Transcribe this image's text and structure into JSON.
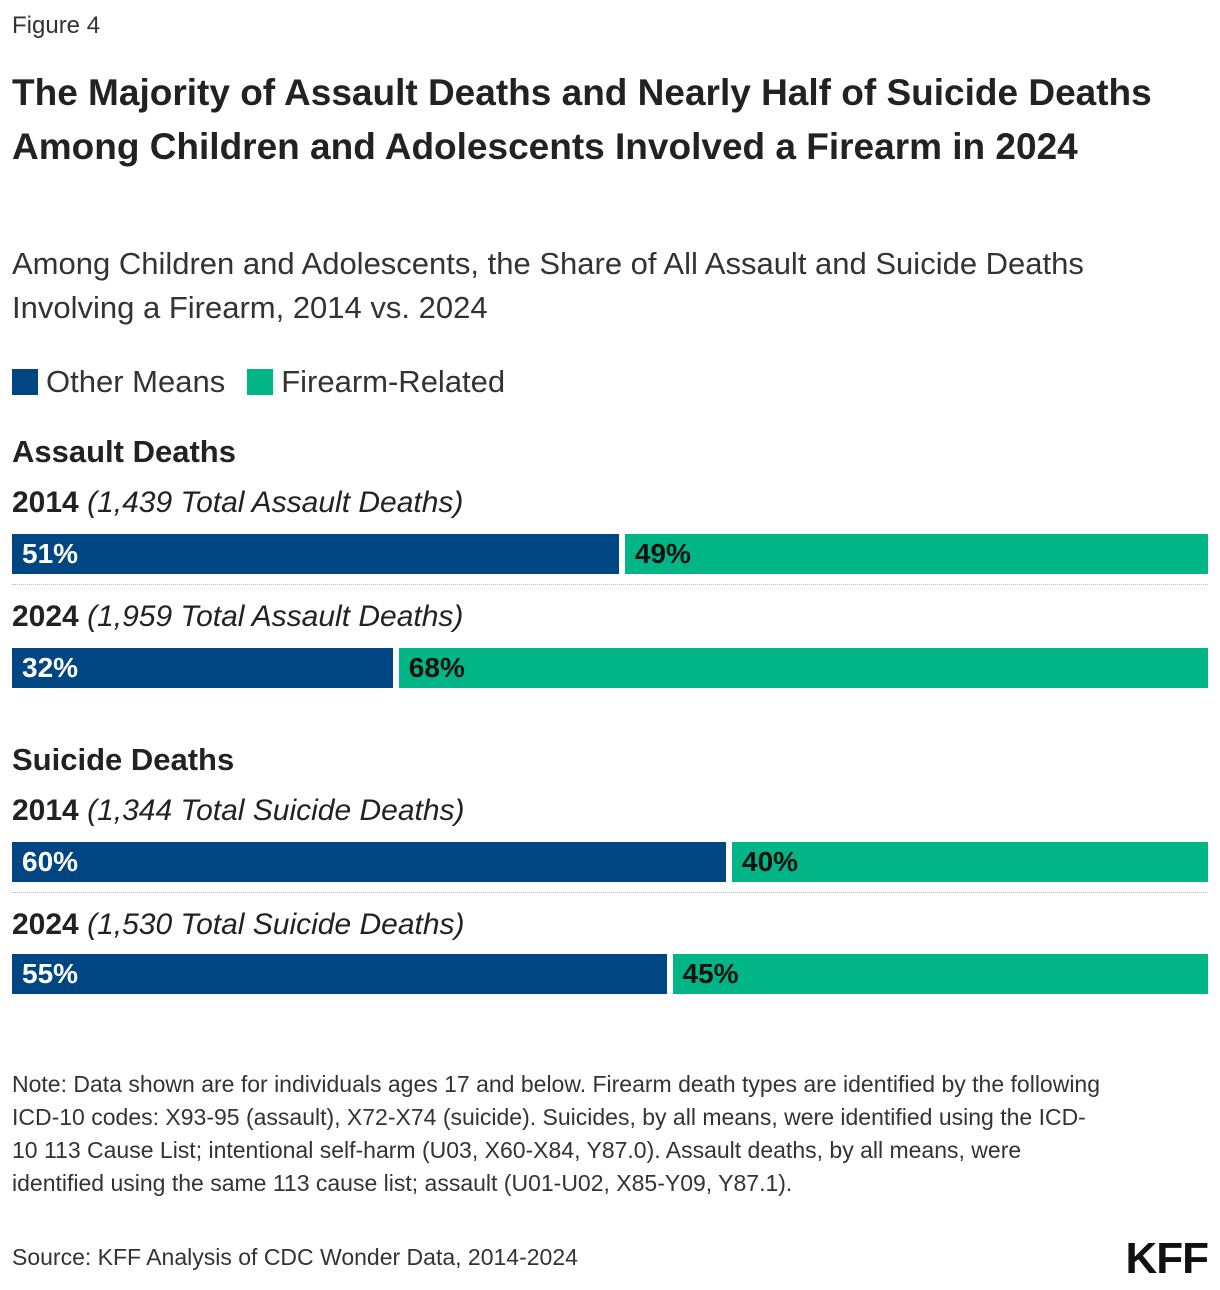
{
  "figure_label": "Figure 4",
  "title": "The Majority of Assault Deaths and Nearly Half of Suicide Deaths Among Children and Adolescents Involved a Firearm in 2024",
  "subtitle": "Among Children and Adolescents, the Share of All Assault and Suicide Deaths Involving a Firearm, 2014 vs. 2024",
  "legend": [
    {
      "label": "Other Means",
      "color": "#004683"
    },
    {
      "label": "Firearm-Related",
      "color": "#00b686"
    }
  ],
  "chart_data": {
    "type": "bar",
    "orientation": "horizontal",
    "stacked": true,
    "unit": "%",
    "groups": [
      {
        "title": "Assault Deaths",
        "rows": [
          {
            "year": "2014",
            "total_label": "(1,439 Total Assault Deaths)",
            "values": [
              51,
              49
            ]
          },
          {
            "year": "2024",
            "total_label": "(1,959 Total Assault Deaths)",
            "values": [
              32,
              68
            ]
          }
        ]
      },
      {
        "title": "Suicide Deaths",
        "rows": [
          {
            "year": "2014",
            "total_label": "(1,344 Total Suicide Deaths)",
            "values": [
              60,
              40
            ]
          },
          {
            "year": "2024",
            "total_label": "(1,530 Total Suicide Deaths)",
            "values": [
              55,
              45
            ]
          }
        ]
      }
    ],
    "series": [
      {
        "name": "Other Means",
        "color": "#004683",
        "label_color": "#ffffff"
      },
      {
        "name": "Firearm-Related",
        "color": "#00b686",
        "label_color": "#111111"
      }
    ]
  },
  "note": "Note: Data shown are for individuals ages 17 and below. Firearm death types are identified by the following ICD-10 codes: X93-95 (assault), X72-X74 (suicide). Suicides, by all means, were identified using the ICD-10 113 Cause List; intentional self-harm (U03, X60-X84, Y87.0). Assault deaths, by all means, were identified using the same 113 cause list; assault (U01-U02, X85-Y09, Y87.1).",
  "source": "Source: KFF Analysis of CDC Wonder Data, 2014-2024",
  "logo_text": "KFF"
}
